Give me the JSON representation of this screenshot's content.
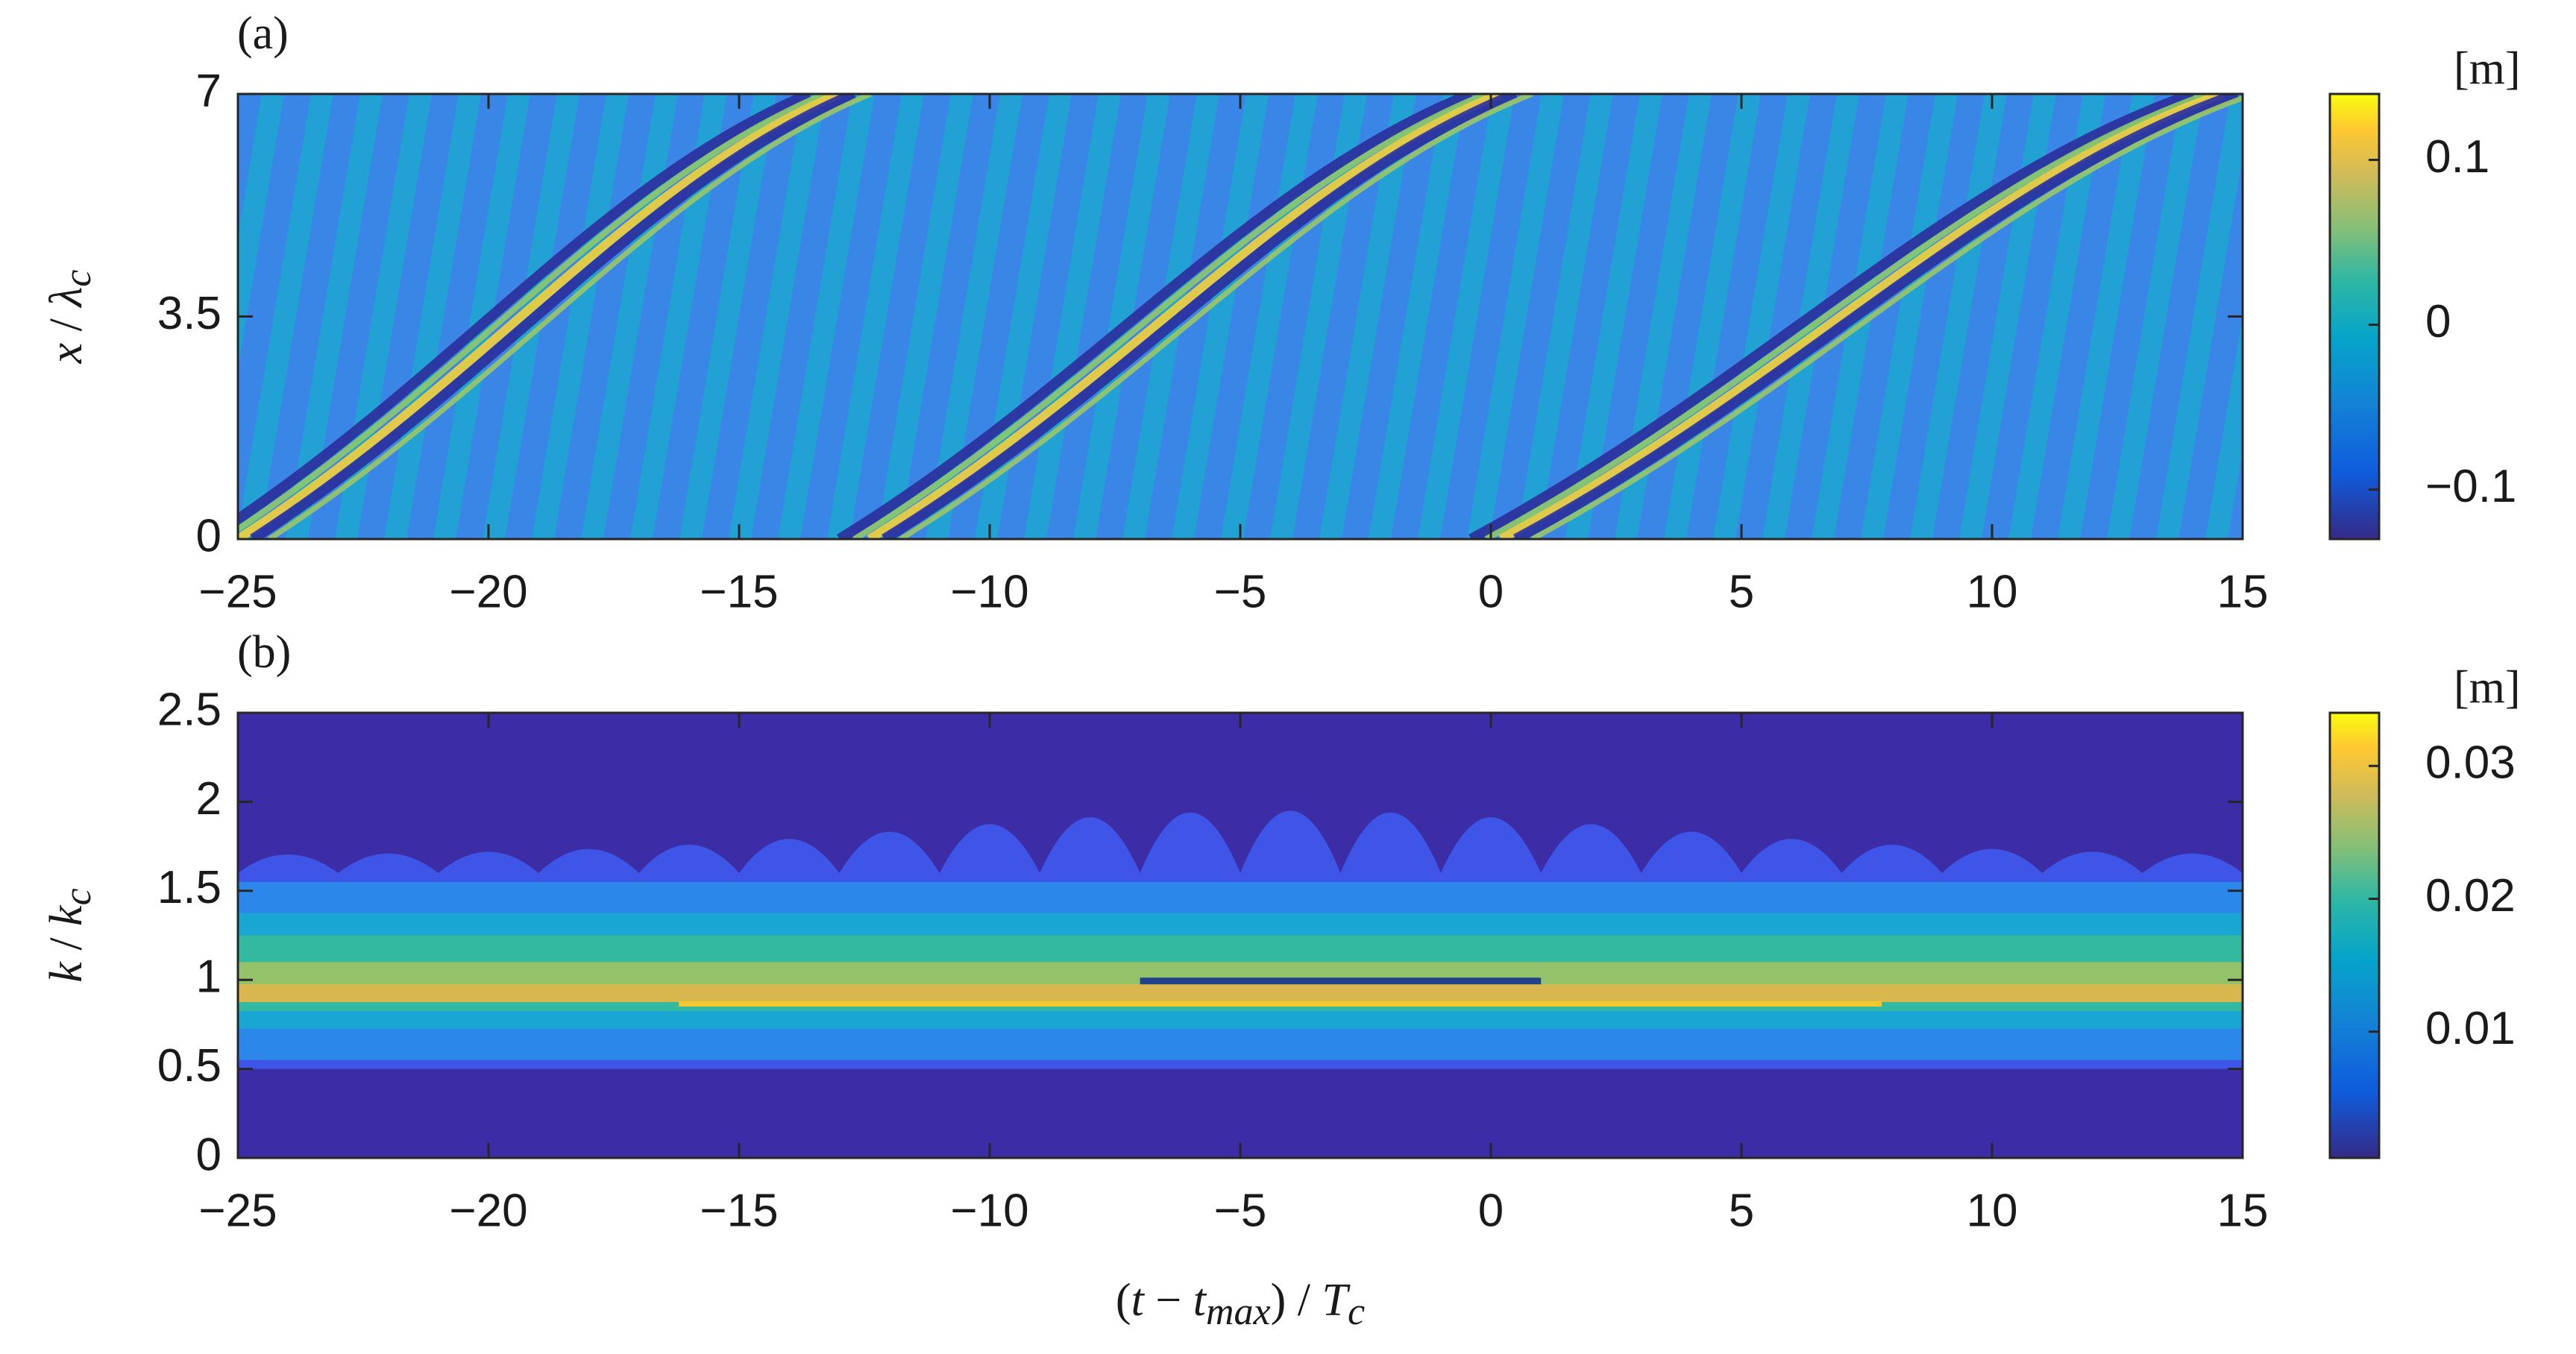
{
  "chart_data": [
    {
      "type": "contour",
      "panel_label": "(a)",
      "xlim": [
        -25,
        15
      ],
      "xticks": [
        {
          "value": -25,
          "label": "−25"
        },
        {
          "value": -20,
          "label": "−20"
        },
        {
          "value": -15,
          "label": "−15"
        },
        {
          "value": -10,
          "label": "−10"
        },
        {
          "value": -5,
          "label": "−5"
        },
        0,
        5,
        10,
        15
      ],
      "ylim": [
        0,
        7
      ],
      "yticks": [
        0,
        3.5,
        7
      ],
      "ylabel": [
        "x",
        " / ",
        "λ",
        "c"
      ],
      "colorbar": {
        "label": "[m]",
        "lim": [
          -0.13,
          0.14
        ],
        "ticks": [
          {
            "value": -0.1,
            "label": "−0.1"
          },
          0,
          0.1
        ]
      }
    },
    {
      "type": "contour",
      "panel_label": "(b)",
      "xlim": [
        -25,
        15
      ],
      "xticks": [
        {
          "value": -25,
          "label": "−25"
        },
        {
          "value": -20,
          "label": "−20"
        },
        {
          "value": -15,
          "label": "−15"
        },
        {
          "value": -10,
          "label": "−10"
        },
        {
          "value": -5,
          "label": "−5"
        },
        0,
        5,
        10,
        15
      ],
      "ylim": [
        0,
        2.5
      ],
      "yticks": [
        0,
        0.5,
        1,
        1.5,
        2,
        2.5
      ],
      "ylabel": [
        "k",
        " / ",
        "k",
        "c"
      ],
      "xlabel": [
        "(",
        "t",
        " − ",
        "t",
        "max",
        ") / ",
        "T",
        "c"
      ],
      "colorbar": {
        "label": "[m]",
        "lim": [
          0.0005,
          0.034
        ],
        "ticks": [
          0.01,
          0.02,
          0.03
        ]
      }
    }
  ]
}
